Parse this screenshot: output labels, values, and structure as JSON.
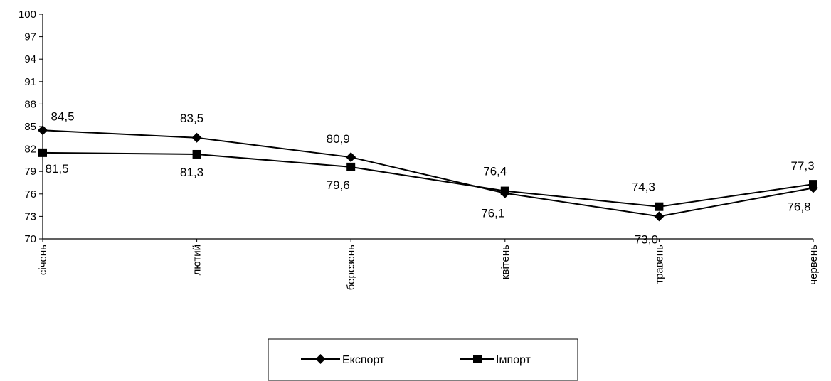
{
  "chart_data": {
    "type": "line",
    "categories": [
      "січень",
      "лютий",
      "березень",
      "квітень",
      "травень",
      "червень"
    ],
    "series": [
      {
        "name": "Експорт",
        "marker": "diamond",
        "values": [
          84.5,
          83.5,
          80.9,
          76.1,
          73.0,
          76.8
        ],
        "labels": [
          "84,5",
          "83,5",
          "80,9",
          "76,1",
          "73,0",
          "76,8"
        ]
      },
      {
        "name": "Імпорт",
        "marker": "square",
        "values": [
          81.5,
          81.3,
          79.6,
          76.4,
          74.3,
          77.3
        ],
        "labels": [
          "81,5",
          "81,3",
          "79,6",
          "76,4",
          "74,3",
          "77,3"
        ]
      }
    ],
    "yticks": [
      "70",
      "73",
      "76",
      "79",
      "82",
      "85",
      "88",
      "91",
      "94",
      "97",
      "100"
    ],
    "ylim": [
      70,
      100
    ],
    "grid": false,
    "legend_position": "bottom",
    "color": "#000000"
  }
}
